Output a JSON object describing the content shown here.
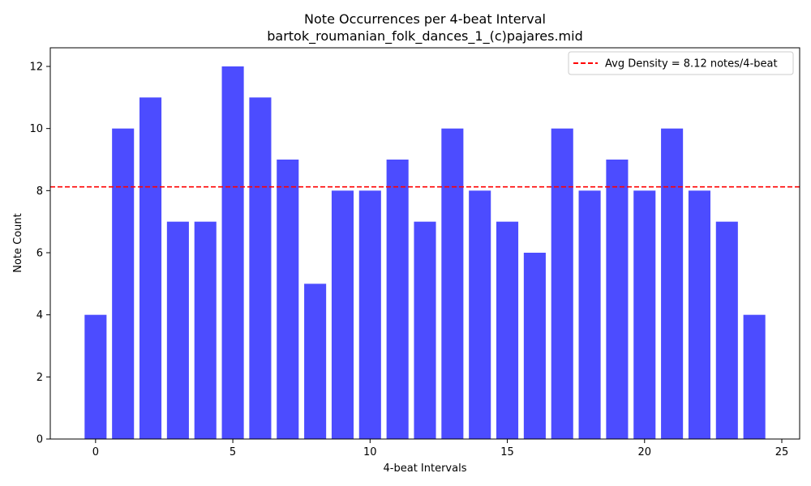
{
  "chart_data": {
    "type": "bar",
    "title": "Note Occurrences per 4-beat Interval",
    "subtitle": "bartok_roumanian_folk_dances_1_(c)pajares.mid",
    "xlabel": "4-beat Intervals",
    "ylabel": "Note Count",
    "x": [
      0,
      1,
      2,
      3,
      4,
      5,
      6,
      7,
      8,
      9,
      10,
      11,
      12,
      13,
      14,
      15,
      16,
      17,
      18,
      19,
      20,
      21,
      22,
      23,
      24
    ],
    "values": [
      4,
      10,
      11,
      7,
      7,
      12,
      11,
      9,
      5,
      8,
      8,
      9,
      7,
      10,
      8,
      7,
      6,
      10,
      8,
      9,
      8,
      10,
      8,
      7,
      4
    ],
    "xlim": [
      -1.65,
      25.65
    ],
    "ylim": [
      0,
      12.6
    ],
    "x_ticks": [
      0,
      5,
      10,
      15,
      20,
      25
    ],
    "y_ticks": [
      0,
      2,
      4,
      6,
      8,
      10,
      12
    ],
    "bar_color": "#4c4cff",
    "average": {
      "value": 8.12,
      "label": "Avg Density = 8.12 notes/4-beat",
      "color": "#ff0000"
    },
    "legend_position": "top-right",
    "grid": false
  }
}
